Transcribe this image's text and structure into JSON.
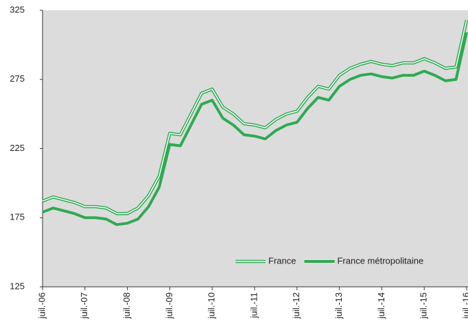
{
  "chart_data": {
    "type": "line",
    "categories": [
      "juil.-06",
      null,
      null,
      null,
      "juil.-07",
      null,
      null,
      null,
      "juil.-08",
      null,
      null,
      null,
      "juil.-09",
      null,
      null,
      null,
      "juil.-10",
      null,
      null,
      null,
      "juil.-11",
      null,
      null,
      null,
      "juil.-12",
      null,
      null,
      null,
      "juil.-13",
      null,
      null,
      null,
      "juil.-14",
      null,
      null,
      null,
      "juil.-15",
      null,
      null,
      null,
      "juil.-16"
    ],
    "series": [
      {
        "name": "France",
        "color": "#2eaa52",
        "style": "double",
        "values": [
          187,
          190,
          188,
          186,
          183,
          183,
          182,
          178,
          178,
          182,
          191,
          205,
          236,
          235,
          250,
          265,
          268,
          255,
          250,
          243,
          242,
          240,
          246,
          250,
          252,
          262,
          270,
          268,
          278,
          283,
          286,
          288,
          286,
          285,
          287,
          287,
          290,
          287,
          283,
          284,
          318
        ]
      },
      {
        "name": "France métropolitaine",
        "color": "#2eaa52",
        "style": "solid",
        "values": [
          179,
          182,
          180,
          178,
          175,
          175,
          174,
          170,
          171,
          174,
          183,
          197,
          228,
          227,
          242,
          257,
          260,
          247,
          242,
          235,
          234,
          232,
          238,
          242,
          244,
          254,
          262,
          260,
          270,
          275,
          278,
          279,
          277,
          276,
          278,
          278,
          281,
          278,
          274,
          275,
          309
        ]
      }
    ],
    "ylim": [
      125,
      325
    ],
    "yticks": [
      125,
      175,
      225,
      275,
      325
    ],
    "legend": "lower right"
  }
}
